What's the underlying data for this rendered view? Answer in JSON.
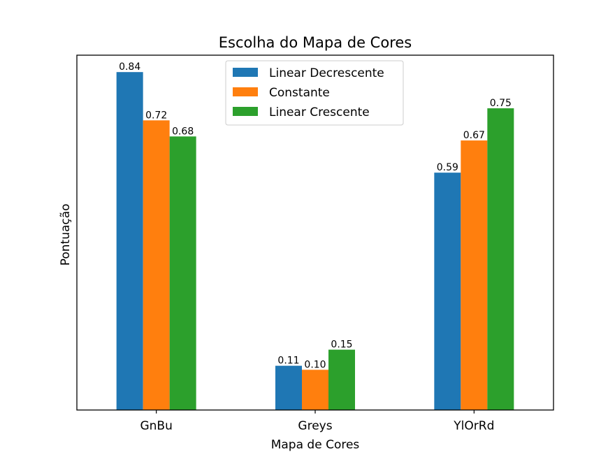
{
  "chart_data": {
    "type": "bar",
    "title": "Escolha do Mapa de Cores",
    "xlabel": "Mapa de Cores",
    "ylabel": "Pontuação",
    "categories": [
      "GnBu",
      "Greys",
      "YlOrRd"
    ],
    "series": [
      {
        "name": "Linear Decrescente",
        "values": [
          0.84,
          0.11,
          0.59
        ],
        "value_labels": [
          "0.84",
          "0.11",
          "0.59"
        ],
        "color": "#1f77b4"
      },
      {
        "name": "Constante",
        "values": [
          0.72,
          0.1,
          0.67
        ],
        "value_labels": [
          "0.72",
          "0.10",
          "0.67"
        ],
        "color": "#ff7f0e"
      },
      {
        "name": "Linear Crescente",
        "values": [
          0.68,
          0.15,
          0.75
        ],
        "value_labels": [
          "0.68",
          "0.15",
          "0.75"
        ],
        "color": "#2ca02c"
      }
    ],
    "ylim": [
      0,
      0.882
    ],
    "y_ticks_visible": false,
    "grid": false,
    "legend_position": "top-center"
  }
}
